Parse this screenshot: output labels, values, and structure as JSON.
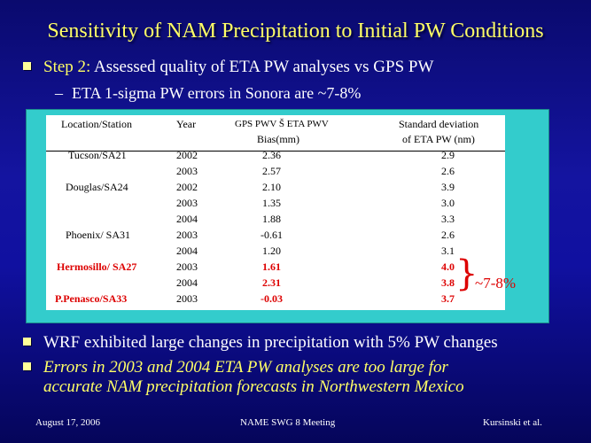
{
  "title": "Sensitivity of NAM Precipitation to Initial PW Conditions",
  "bullet1": {
    "lead": "Step 2:",
    "text": " Assessed quality of ETA PW analyses vs GPS PW"
  },
  "sub1": {
    "dash": "–",
    "text": "ETA 1-sigma PW errors in Sonora are ~7-8%"
  },
  "table": {
    "headers": {
      "station": "Location/Station",
      "year": "Year",
      "bias_line1": "GPS PWV Š ETA PWV",
      "bias_line2": "Bias(mm)",
      "sd_line1": "Standard  deviation",
      "sd_line2": "of ETA PW (nm)"
    },
    "rows": [
      {
        "station": "Tucson/SA21",
        "year": "2002",
        "bias": "2.36",
        "sd": "2.9"
      },
      {
        "station": "",
        "year": "2003",
        "bias": "2.57",
        "sd": "2.6"
      },
      {
        "station": "Douglas/SA24",
        "year": "2002",
        "bias": "2.10",
        "sd": "3.9"
      },
      {
        "station": "",
        "year": "2003",
        "bias": "1.35",
        "sd": "3.0"
      },
      {
        "station": "",
        "year": "2004",
        "bias": "1.88",
        "sd": "3.3"
      },
      {
        "station": "Phoenix/ SA31",
        "year": "2003",
        "bias": "-0.61",
        "sd": "2.6"
      },
      {
        "station": "",
        "year": "2004",
        "bias": "1.20",
        "sd": "3.1"
      },
      {
        "station": "Hermosillo/ SA27",
        "year": "2003",
        "bias": "1.61",
        "sd": "4.0"
      },
      {
        "station": "",
        "year": "2004",
        "bias": "2.31",
        "sd": "3.8"
      },
      {
        "station": "P.Penasco/SA33",
        "year": "2003",
        "bias": "-0.03",
        "sd": "3.7"
      }
    ],
    "highlight_note": "~7-8%",
    "highlight_color": "#dd0000"
  },
  "bullet2": "WRF exhibited large changes in precipitation with 5% PW changes",
  "bullet3": {
    "line1": "Errors in 2003 and 2004 ETA PW analyses are too large for",
    "line2": "accurate NAM precipitation forecasts in Northwestern Mexico"
  },
  "footer": {
    "date": "August 17, 2006",
    "meeting": "NAME SWG 8 Meeting",
    "author": "Kursinski et al."
  }
}
